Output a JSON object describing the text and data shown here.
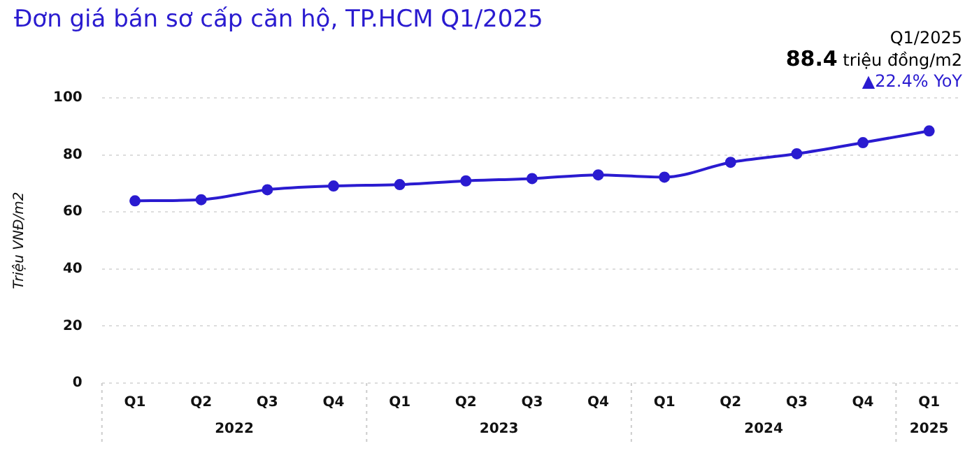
{
  "chart_data": {
    "type": "line",
    "title": "Đơn giá bán sơ cấp căn hộ, TP.HCM Q1/2025",
    "ylabel": "Triệu VNĐ/m2",
    "categories": [
      "Q1",
      "Q2",
      "Q3",
      "Q4",
      "Q1",
      "Q2",
      "Q3",
      "Q4",
      "Q1",
      "Q2",
      "Q3",
      "Q4",
      "Q1"
    ],
    "values": [
      63.9,
      64.3,
      67.8,
      69.1,
      69.6,
      70.9,
      71.7,
      73.0,
      72.2,
      77.4,
      80.4,
      84.3,
      88.4
    ],
    "color": "#2a1bd0",
    "marker": "circle",
    "line_style": "solid",
    "grid": "y",
    "ylim": [
      0,
      100
    ],
    "yticks": [
      0,
      20,
      40,
      60,
      80,
      100
    ],
    "annotations": [
      "2022",
      "2023",
      "2024",
      "2025",
      "Q1/2025",
      "88.4 triệu đồng/m2",
      "▲22.4% YoY"
    ]
  }
}
